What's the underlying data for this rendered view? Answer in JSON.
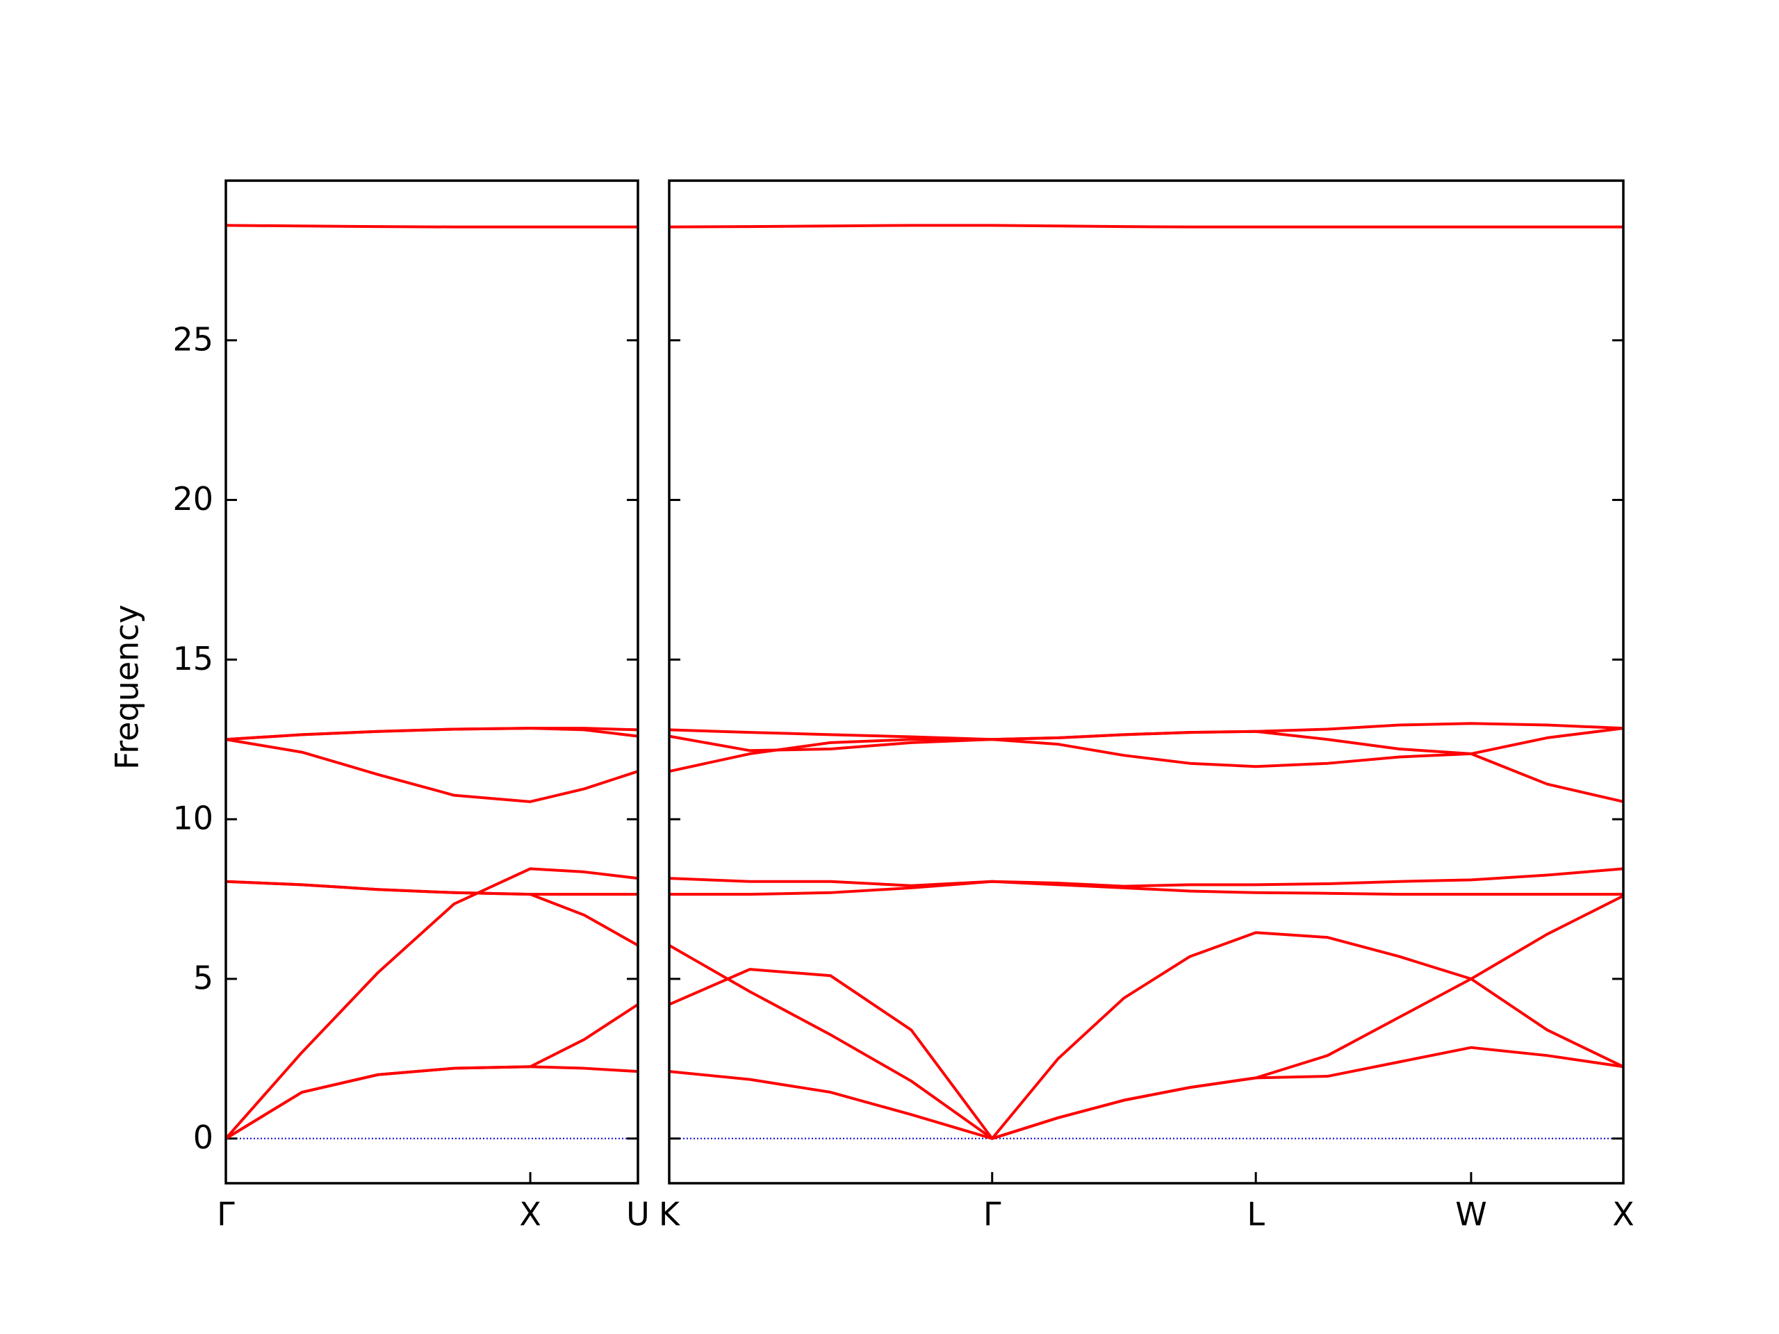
{
  "chart_data": [
    {
      "type": "line",
      "ylabel": "Frequency",
      "x": [
        0,
        0.25,
        0.5,
        0.75,
        1,
        1.1768,
        1.3536
      ],
      "xlim": [
        0,
        1.3536
      ],
      "xticks": [
        {
          "value": 0,
          "label": "Γ"
        },
        {
          "value": 1,
          "label": "X"
        },
        {
          "value": 1.3536,
          "label": "U"
        }
      ],
      "ylim": [
        -1.4,
        30
      ],
      "yticks": [
        0,
        5,
        10,
        15,
        20,
        25
      ],
      "show_ytick_labels": true,
      "zero_line_color": "#0000cd",
      "series": [
        {
          "color": "#ff0000",
          "values": [
            0,
            1.45,
            2.0,
            2.2,
            2.25,
            2.2,
            2.1
          ]
        },
        {
          "color": "#ff0000",
          "values": [
            0,
            1.45,
            2.0,
            2.2,
            2.25,
            3.1,
            4.2
          ]
        },
        {
          "color": "#ff0000",
          "values": [
            0,
            2.7,
            5.2,
            7.35,
            8.45,
            8.35,
            8.15
          ]
        },
        {
          "color": "#ff0000",
          "values": [
            8.05,
            7.95,
            7.8,
            7.7,
            7.65,
            7.65,
            7.65
          ]
        },
        {
          "color": "#ff0000",
          "values": [
            8.05,
            7.95,
            7.8,
            7.7,
            7.65,
            7.0,
            6.05
          ]
        },
        {
          "color": "#ff0000",
          "values": [
            12.5,
            12.1,
            11.4,
            10.75,
            10.55,
            10.95,
            11.5
          ]
        },
        {
          "color": "#ff0000",
          "values": [
            12.5,
            12.65,
            12.75,
            12.82,
            12.85,
            12.8,
            12.6
          ]
        },
        {
          "color": "#ff0000",
          "values": [
            12.5,
            12.65,
            12.75,
            12.82,
            12.85,
            12.85,
            12.8
          ]
        },
        {
          "color": "#ff0000",
          "values": [
            28.6,
            28.58,
            28.56,
            28.55,
            28.55,
            28.55,
            28.55
          ]
        }
      ]
    },
    {
      "type": "line",
      "x": [
        0,
        0.265,
        0.53,
        0.795,
        1.0607,
        1.2772,
        1.4937,
        1.7102,
        1.9267,
        2.1624,
        2.3981,
        2.6338,
        2.8838,
        3.1338
      ],
      "xlim": [
        0,
        3.1338
      ],
      "xticks": [
        {
          "value": 0,
          "label": "K"
        },
        {
          "value": 1.0607,
          "label": "Γ"
        },
        {
          "value": 1.9267,
          "label": "L"
        },
        {
          "value": 2.6338,
          "label": "W"
        },
        {
          "value": 3.1338,
          "label": "X"
        }
      ],
      "ylim": [
        -1.4,
        30
      ],
      "yticks": [
        0,
        5,
        10,
        15,
        20,
        25
      ],
      "show_ytick_labels": false,
      "zero_line_color": "#0000cd",
      "series": [
        {
          "color": "#ff0000",
          "values": [
            2.1,
            1.85,
            1.45,
            0.75,
            0,
            0.65,
            1.2,
            1.6,
            1.9,
            1.95,
            2.4,
            2.85,
            2.6,
            2.25
          ]
        },
        {
          "color": "#ff0000",
          "values": [
            4.2,
            5.3,
            5.1,
            3.4,
            0,
            0.65,
            1.2,
            1.6,
            1.9,
            2.6,
            3.8,
            5.0,
            3.4,
            2.25
          ]
        },
        {
          "color": "#ff0000",
          "values": [
            6.05,
            4.6,
            3.25,
            1.8,
            0,
            2.5,
            4.4,
            5.7,
            6.45,
            6.3,
            5.7,
            5.0,
            6.4,
            7.6
          ]
        },
        {
          "color": "#ff0000",
          "values": [
            8.15,
            8.05,
            8.05,
            7.92,
            8.05,
            8.0,
            7.9,
            7.95,
            7.95,
            7.98,
            8.05,
            8.1,
            8.25,
            8.45
          ]
        },
        {
          "color": "#ff0000",
          "values": [
            7.65,
            7.65,
            7.7,
            7.85,
            8.05,
            7.95,
            7.85,
            7.75,
            7.7,
            7.68,
            7.65,
            7.65,
            7.65,
            7.65
          ]
        },
        {
          "color": "#ff0000",
          "values": [
            11.5,
            12.05,
            12.4,
            12.5,
            12.5,
            12.35,
            12.0,
            11.75,
            11.65,
            11.75,
            11.95,
            12.05,
            11.1,
            10.55
          ]
        },
        {
          "color": "#ff0000",
          "values": [
            12.6,
            12.15,
            12.2,
            12.4,
            12.5,
            12.55,
            12.65,
            12.72,
            12.75,
            12.5,
            12.2,
            12.05,
            12.55,
            12.85
          ]
        },
        {
          "color": "#ff0000",
          "values": [
            12.8,
            12.72,
            12.65,
            12.58,
            12.5,
            12.55,
            12.65,
            12.72,
            12.75,
            12.82,
            12.95,
            13.0,
            12.95,
            12.85
          ]
        },
        {
          "color": "#ff0000",
          "values": [
            28.55,
            28.56,
            28.58,
            28.6,
            28.6,
            28.58,
            28.56,
            28.55,
            28.55,
            28.55,
            28.55,
            28.55,
            28.55,
            28.55
          ]
        }
      ]
    }
  ]
}
